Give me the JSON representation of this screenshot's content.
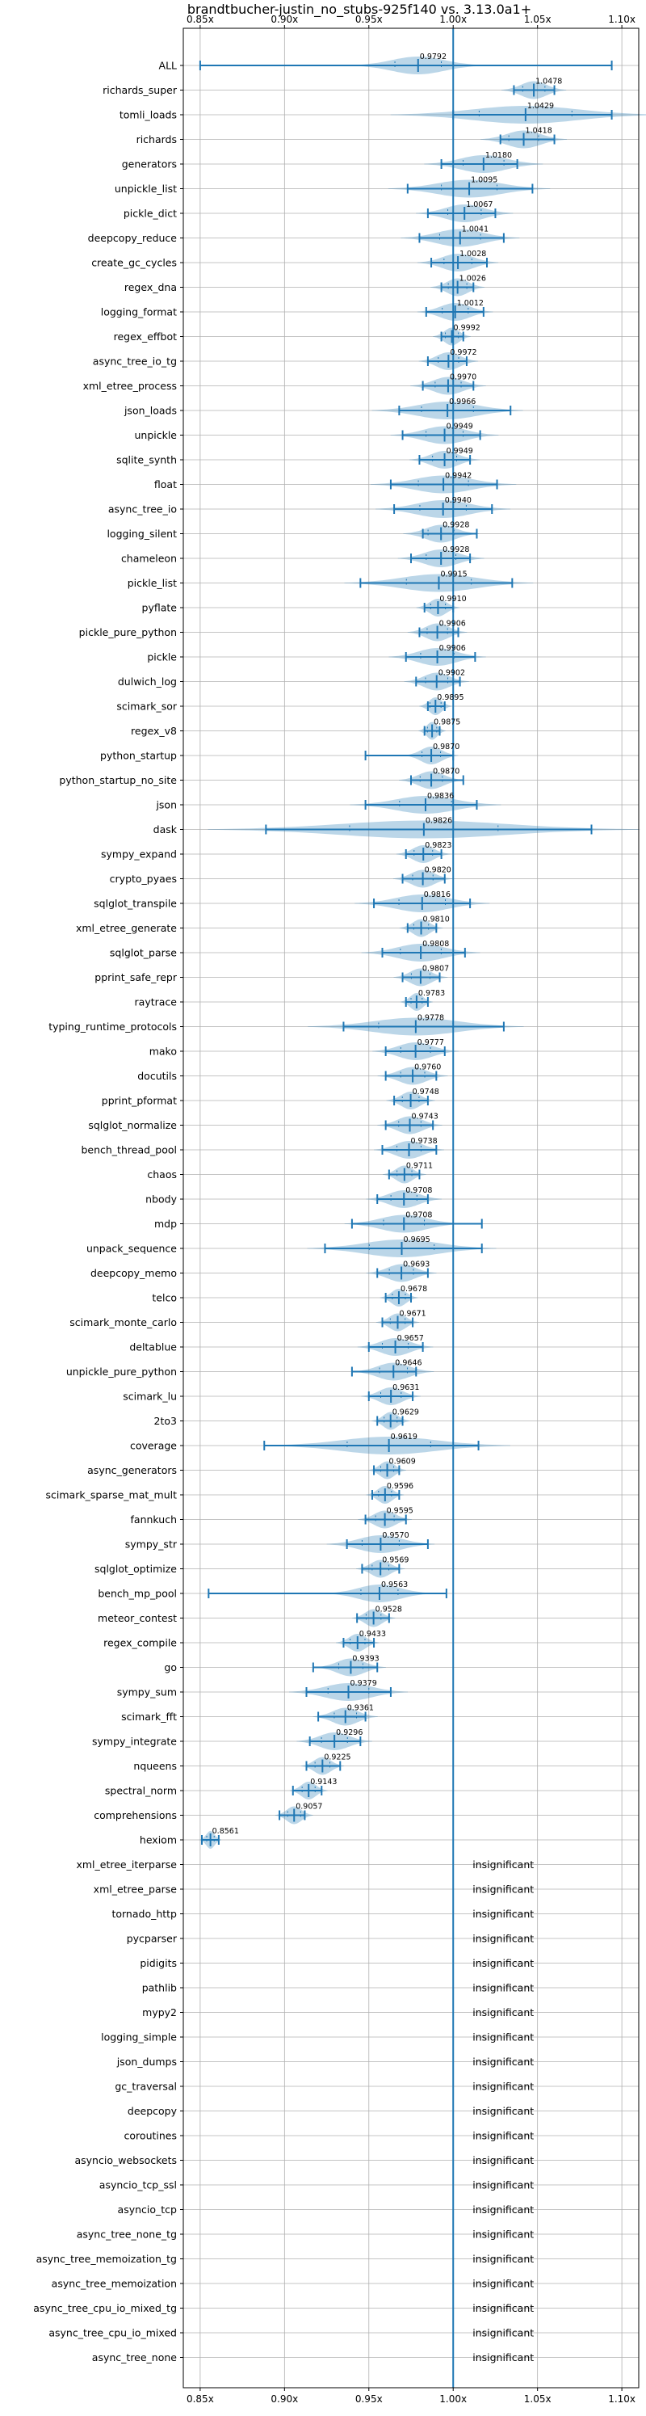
{
  "chart_data": {
    "type": "violin",
    "title": "brandtbucher-justin_no_stubs-925f140 vs. 3.13.0a1+",
    "xlim": [
      0.84,
      1.11
    ],
    "xticks": [
      0.85,
      0.9,
      0.95,
      1.0,
      1.05,
      1.1
    ],
    "xtick_labels": [
      "0.85x",
      "0.90x",
      "0.95x",
      "1.00x",
      "1.05x",
      "1.10x"
    ],
    "grid": true,
    "baseline": 1.0,
    "insignificant_label": "insignificant",
    "benchmarks": [
      {
        "name": "ALL",
        "mean": 0.9792,
        "label": "0.9792",
        "min": 0.85,
        "max": 1.094,
        "spread": 0.025
      },
      {
        "name": "richards_super",
        "mean": 1.0478,
        "label": "1.0478",
        "min": 1.036,
        "max": 1.06,
        "spread": 0.012
      },
      {
        "name": "tomli_loads",
        "mean": 1.0429,
        "label": "1.0429",
        "min": 1.0,
        "max": 1.094,
        "spread": 0.05
      },
      {
        "name": "richards",
        "mean": 1.0418,
        "label": "1.0418",
        "min": 1.028,
        "max": 1.06,
        "spread": 0.016
      },
      {
        "name": "generators",
        "mean": 1.018,
        "label": "1.0180",
        "min": 0.993,
        "max": 1.038,
        "spread": 0.022
      },
      {
        "name": "unpickle_list",
        "mean": 1.0095,
        "label": "1.0095",
        "min": 0.973,
        "max": 1.047,
        "spread": 0.03
      },
      {
        "name": "pickle_dict",
        "mean": 1.0067,
        "label": "1.0067",
        "min": 0.985,
        "max": 1.025,
        "spread": 0.018
      },
      {
        "name": "deepcopy_reduce",
        "mean": 1.0041,
        "label": "1.0041",
        "min": 0.98,
        "max": 1.03,
        "spread": 0.022
      },
      {
        "name": "create_gc_cycles",
        "mean": 1.0028,
        "label": "1.0028",
        "min": 0.987,
        "max": 1.02,
        "spread": 0.015
      },
      {
        "name": "regex_dna",
        "mean": 1.0026,
        "label": "1.0026",
        "min": 0.993,
        "max": 1.012,
        "spread": 0.01
      },
      {
        "name": "logging_format",
        "mean": 1.0012,
        "label": "1.0012",
        "min": 0.984,
        "max": 1.018,
        "spread": 0.014
      },
      {
        "name": "regex_effbot",
        "mean": 0.9992,
        "label": "0.9992",
        "min": 0.993,
        "max": 1.006,
        "spread": 0.007
      },
      {
        "name": "async_tree_io_tg",
        "mean": 0.9972,
        "label": "0.9972",
        "min": 0.985,
        "max": 1.008,
        "spread": 0.011
      },
      {
        "name": "xml_etree_process",
        "mean": 0.997,
        "label": "0.9970",
        "min": 0.982,
        "max": 1.012,
        "spread": 0.014
      },
      {
        "name": "json_loads",
        "mean": 0.9966,
        "label": "0.9966",
        "min": 0.968,
        "max": 1.034,
        "spread": 0.028
      },
      {
        "name": "unpickle",
        "mean": 0.9949,
        "label": "0.9949",
        "min": 0.97,
        "max": 1.016,
        "spread": 0.02
      },
      {
        "name": "sqlite_synth",
        "mean": 0.9949,
        "label": "0.9949",
        "min": 0.98,
        "max": 1.01,
        "spread": 0.013
      },
      {
        "name": "float",
        "mean": 0.9942,
        "label": "0.9942",
        "min": 0.963,
        "max": 1.026,
        "spread": 0.027
      },
      {
        "name": "async_tree_io",
        "mean": 0.994,
        "label": "0.9940",
        "min": 0.965,
        "max": 1.023,
        "spread": 0.025
      },
      {
        "name": "logging_silent",
        "mean": 0.9928,
        "label": "0.9928",
        "min": 0.982,
        "max": 1.014,
        "spread": 0.014
      },
      {
        "name": "chameleon",
        "mean": 0.9928,
        "label": "0.9928",
        "min": 0.975,
        "max": 1.01,
        "spread": 0.016
      },
      {
        "name": "pickle_list",
        "mean": 0.9915,
        "label": "0.9915",
        "min": 0.945,
        "max": 1.035,
        "spread": 0.035
      },
      {
        "name": "pyflate",
        "mean": 0.991,
        "label": "0.9910",
        "min": 0.983,
        "max": 1.0,
        "spread": 0.008
      },
      {
        "name": "pickle_pure_python",
        "mean": 0.9906,
        "label": "0.9906",
        "min": 0.98,
        "max": 1.003,
        "spread": 0.011
      },
      {
        "name": "pickle",
        "mean": 0.9906,
        "label": "0.9906",
        "min": 0.972,
        "max": 1.013,
        "spread": 0.018
      },
      {
        "name": "dulwich_log",
        "mean": 0.9902,
        "label": "0.9902",
        "min": 0.978,
        "max": 1.004,
        "spread": 0.012
      },
      {
        "name": "scimark_sor",
        "mean": 0.9895,
        "label": "0.9895",
        "min": 0.985,
        "max": 0.995,
        "spread": 0.006
      },
      {
        "name": "regex_v8",
        "mean": 0.9875,
        "label": "0.9875",
        "min": 0.983,
        "max": 0.992,
        "spread": 0.005
      },
      {
        "name": "python_startup",
        "mean": 0.987,
        "label": "0.9870",
        "min": 0.948,
        "max": 1.0,
        "spread": 0.01
      },
      {
        "name": "python_startup_no_site",
        "mean": 0.987,
        "label": "0.9870",
        "min": 0.975,
        "max": 1.006,
        "spread": 0.012
      },
      {
        "name": "json",
        "mean": 0.9836,
        "label": "0.9836",
        "min": 0.948,
        "max": 1.014,
        "spread": 0.028
      },
      {
        "name": "dask",
        "mean": 0.9826,
        "label": "0.9826",
        "min": 0.889,
        "max": 1.082,
        "spread": 0.08
      },
      {
        "name": "sympy_expand",
        "mean": 0.9823,
        "label": "0.9823",
        "min": 0.972,
        "max": 0.993,
        "spread": 0.01
      },
      {
        "name": "crypto_pyaes",
        "mean": 0.982,
        "label": "0.9820",
        "min": 0.97,
        "max": 0.995,
        "spread": 0.011
      },
      {
        "name": "sqlglot_transpile",
        "mean": 0.9816,
        "label": "0.9816",
        "min": 0.953,
        "max": 1.01,
        "spread": 0.025
      },
      {
        "name": "xml_etree_generate",
        "mean": 0.981,
        "label": "0.9810",
        "min": 0.973,
        "max": 0.99,
        "spread": 0.008
      },
      {
        "name": "sqlglot_parse",
        "mean": 0.9808,
        "label": "0.9808",
        "min": 0.958,
        "max": 1.007,
        "spread": 0.022
      },
      {
        "name": "pprint_safe_repr",
        "mean": 0.9807,
        "label": "0.9807",
        "min": 0.97,
        "max": 0.992,
        "spread": 0.01
      },
      {
        "name": "raytrace",
        "mean": 0.9783,
        "label": "0.9783",
        "min": 0.972,
        "max": 0.985,
        "spread": 0.006
      },
      {
        "name": "typing_runtime_protocols",
        "mean": 0.9778,
        "label": "0.9778",
        "min": 0.935,
        "max": 1.03,
        "spread": 0.04
      },
      {
        "name": "mako",
        "mean": 0.9777,
        "label": "0.9777",
        "min": 0.96,
        "max": 0.995,
        "spread": 0.016
      },
      {
        "name": "docutils",
        "mean": 0.976,
        "label": "0.9760",
        "min": 0.96,
        "max": 0.99,
        "spread": 0.013
      },
      {
        "name": "pprint_pformat",
        "mean": 0.9748,
        "label": "0.9748",
        "min": 0.965,
        "max": 0.985,
        "spread": 0.009
      },
      {
        "name": "sqlglot_normalize",
        "mean": 0.9743,
        "label": "0.9743",
        "min": 0.96,
        "max": 0.988,
        "spread": 0.012
      },
      {
        "name": "bench_thread_pool",
        "mean": 0.9738,
        "label": "0.9738",
        "min": 0.958,
        "max": 0.99,
        "spread": 0.013
      },
      {
        "name": "chaos",
        "mean": 0.9711,
        "label": "0.9711",
        "min": 0.962,
        "max": 0.98,
        "spread": 0.008
      },
      {
        "name": "nbody",
        "mean": 0.9708,
        "label": "0.9708",
        "min": 0.955,
        "max": 0.985,
        "spread": 0.014
      },
      {
        "name": "mdp",
        "mean": 0.9708,
        "label": "0.9708",
        "min": 0.94,
        "max": 1.017,
        "spread": 0.022
      },
      {
        "name": "unpack_sequence",
        "mean": 0.9695,
        "label": "0.9695",
        "min": 0.924,
        "max": 1.017,
        "spread": 0.035
      },
      {
        "name": "deepcopy_memo",
        "mean": 0.9693,
        "label": "0.9693",
        "min": 0.955,
        "max": 0.985,
        "spread": 0.013
      },
      {
        "name": "telco",
        "mean": 0.9678,
        "label": "0.9678",
        "min": 0.96,
        "max": 0.975,
        "spread": 0.007
      },
      {
        "name": "scimark_monte_carlo",
        "mean": 0.9671,
        "label": "0.9671",
        "min": 0.958,
        "max": 0.976,
        "spread": 0.008
      },
      {
        "name": "deltablue",
        "mean": 0.9657,
        "label": "0.9657",
        "min": 0.95,
        "max": 0.982,
        "spread": 0.014
      },
      {
        "name": "unpickle_pure_python",
        "mean": 0.9646,
        "label": "0.9646",
        "min": 0.94,
        "max": 0.978,
        "spread": 0.015
      },
      {
        "name": "scimark_lu",
        "mean": 0.9631,
        "label": "0.9631",
        "min": 0.95,
        "max": 0.976,
        "spread": 0.011
      },
      {
        "name": "2to3",
        "mean": 0.9629,
        "label": "0.9629",
        "min": 0.955,
        "max": 0.97,
        "spread": 0.007
      },
      {
        "name": "coverage",
        "mean": 0.9619,
        "label": "0.9619",
        "min": 0.888,
        "max": 1.015,
        "spread": 0.045
      },
      {
        "name": "async_generators",
        "mean": 0.9609,
        "label": "0.9609",
        "min": 0.953,
        "max": 0.968,
        "spread": 0.007
      },
      {
        "name": "scimark_sparse_mat_mult",
        "mean": 0.9596,
        "label": "0.9596",
        "min": 0.952,
        "max": 0.968,
        "spread": 0.007
      },
      {
        "name": "fannkuch",
        "mean": 0.9595,
        "label": "0.9595",
        "min": 0.948,
        "max": 0.972,
        "spread": 0.01
      },
      {
        "name": "sympy_str",
        "mean": 0.957,
        "label": "0.9570",
        "min": 0.937,
        "max": 0.985,
        "spread": 0.02
      },
      {
        "name": "sqlglot_optimize",
        "mean": 0.9569,
        "label": "0.9569",
        "min": 0.946,
        "max": 0.968,
        "spread": 0.009
      },
      {
        "name": "bench_mp_pool",
        "mean": 0.9563,
        "label": "0.9563",
        "min": 0.855,
        "max": 0.996,
        "spread": 0.02
      },
      {
        "name": "meteor_contest",
        "mean": 0.9528,
        "label": "0.9528",
        "min": 0.943,
        "max": 0.962,
        "spread": 0.008
      },
      {
        "name": "regex_compile",
        "mean": 0.9433,
        "label": "0.9433",
        "min": 0.935,
        "max": 0.953,
        "spread": 0.008
      },
      {
        "name": "go",
        "mean": 0.9393,
        "label": "0.9393",
        "min": 0.917,
        "max": 0.955,
        "spread": 0.013
      },
      {
        "name": "sympy_sum",
        "mean": 0.9379,
        "label": "0.9379",
        "min": 0.913,
        "max": 0.963,
        "spread": 0.022
      },
      {
        "name": "scimark_fft",
        "mean": 0.9361,
        "label": "0.9361",
        "min": 0.92,
        "max": 0.948,
        "spread": 0.012
      },
      {
        "name": "sympy_integrate",
        "mean": 0.9296,
        "label": "0.9296",
        "min": 0.915,
        "max": 0.945,
        "spread": 0.014
      },
      {
        "name": "nqueens",
        "mean": 0.9225,
        "label": "0.9225",
        "min": 0.913,
        "max": 0.933,
        "spread": 0.008
      },
      {
        "name": "spectral_norm",
        "mean": 0.9143,
        "label": "0.9143",
        "min": 0.905,
        "max": 0.922,
        "spread": 0.007
      },
      {
        "name": "comprehensions",
        "mean": 0.9057,
        "label": "0.9057",
        "min": 0.897,
        "max": 0.912,
        "spread": 0.007
      },
      {
        "name": "hexiom",
        "mean": 0.8561,
        "label": "0.8561",
        "min": 0.851,
        "max": 0.861,
        "spread": 0.004
      },
      {
        "name": "xml_etree_iterparse",
        "insignificant": true
      },
      {
        "name": "xml_etree_parse",
        "insignificant": true
      },
      {
        "name": "tornado_http",
        "insignificant": true
      },
      {
        "name": "pycparser",
        "insignificant": true
      },
      {
        "name": "pidigits",
        "insignificant": true
      },
      {
        "name": "pathlib",
        "insignificant": true
      },
      {
        "name": "mypy2",
        "insignificant": true
      },
      {
        "name": "logging_simple",
        "insignificant": true
      },
      {
        "name": "json_dumps",
        "insignificant": true
      },
      {
        "name": "gc_traversal",
        "insignificant": true
      },
      {
        "name": "deepcopy",
        "insignificant": true
      },
      {
        "name": "coroutines",
        "insignificant": true
      },
      {
        "name": "asyncio_websockets",
        "insignificant": true
      },
      {
        "name": "asyncio_tcp_ssl",
        "insignificant": true
      },
      {
        "name": "asyncio_tcp",
        "insignificant": true
      },
      {
        "name": "async_tree_none_tg",
        "insignificant": true
      },
      {
        "name": "async_tree_memoization_tg",
        "insignificant": true
      },
      {
        "name": "async_tree_memoization",
        "insignificant": true
      },
      {
        "name": "async_tree_cpu_io_mixed_tg",
        "insignificant": true
      },
      {
        "name": "async_tree_cpu_io_mixed",
        "insignificant": true
      },
      {
        "name": "async_tree_none",
        "insignificant": true
      }
    ]
  },
  "colors": {
    "series": "#1f77b4",
    "grid": "#b0b0b0",
    "text": "#000000"
  }
}
